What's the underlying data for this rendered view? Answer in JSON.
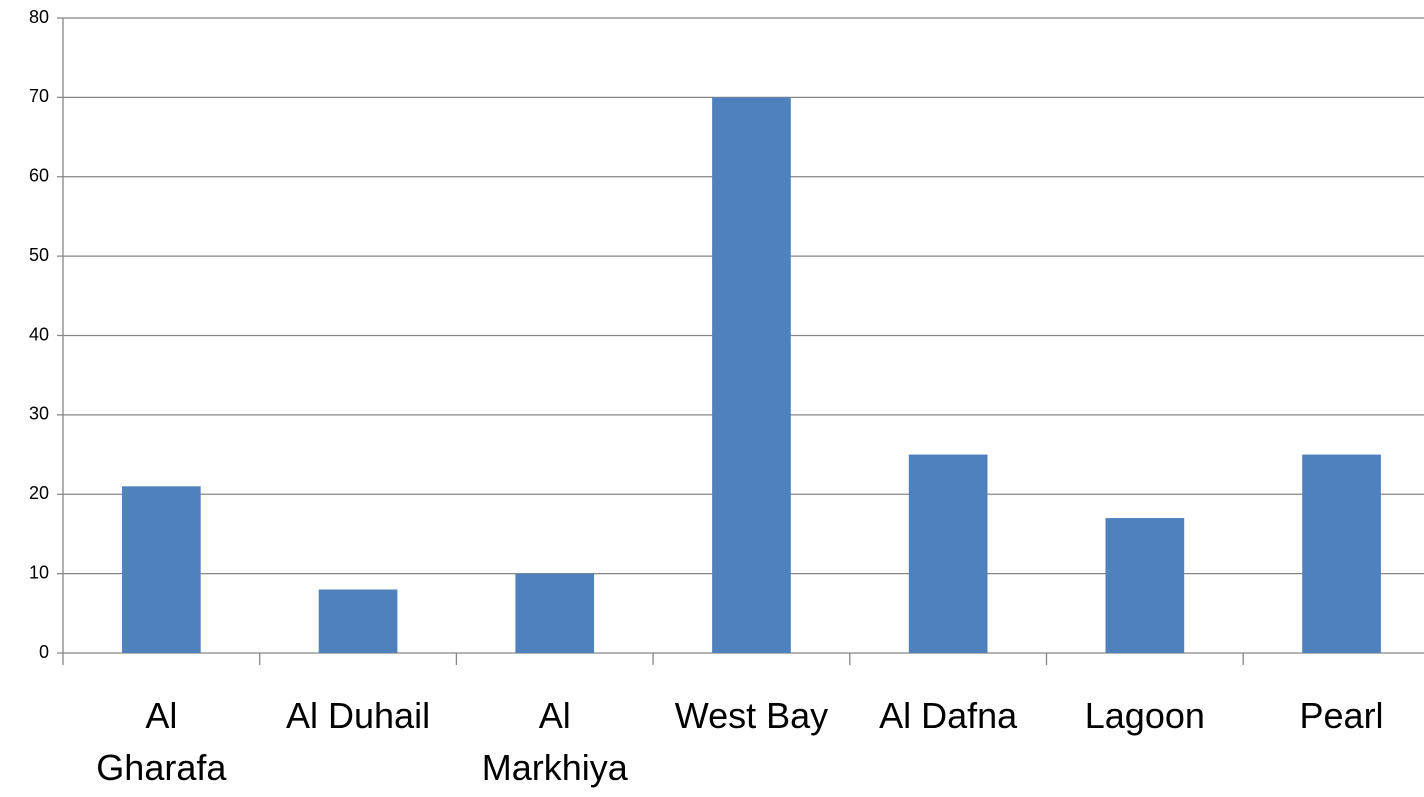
{
  "chart_data": {
    "type": "bar",
    "categories": [
      "Al Gharafa",
      "Al Duhail",
      "Al Markhiya",
      "West Bay",
      "Al Dafna",
      "Lagoon",
      "Pearl"
    ],
    "values": [
      21,
      8,
      10,
      70,
      25,
      17,
      25
    ],
    "color": "#4f81bd",
    "ylim": [
      0,
      80
    ],
    "yticks": [
      0,
      10,
      20,
      30,
      40,
      50,
      60,
      70,
      80
    ],
    "grid": true
  }
}
